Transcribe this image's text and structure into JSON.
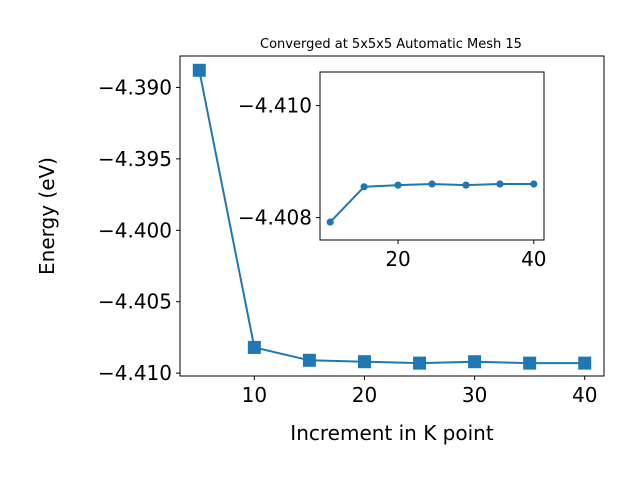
{
  "chart_data": [
    {
      "type": "line",
      "title": "Converged at 5x5x5 Automatic Mesh 15",
      "xlabel": "Increment in K point",
      "ylabel": "Energy (eV)",
      "x": [
        5,
        10,
        15,
        20,
        25,
        30,
        35,
        40
      ],
      "series": [
        {
          "values": [
            -4.3888,
            -4.4082,
            -4.4091,
            -4.4092,
            -4.4093,
            -4.4092,
            -4.4093,
            -4.4093
          ],
          "color": "#1f77b4",
          "marker": "square"
        }
      ],
      "xlim": [
        3.25,
        41.75
      ],
      "ylim": [
        -4.4102,
        -4.3878
      ],
      "xticks": [
        10,
        20,
        30,
        40
      ],
      "xtick_labels": [
        "10",
        "20",
        "30",
        "40"
      ],
      "yticks": [
        -4.39,
        -4.395,
        -4.4,
        -4.405,
        -4.41
      ],
      "ytick_labels": [
        "−4.390",
        "−4.395",
        "−4.400",
        "−4.405",
        "−4.410"
      ],
      "grid": false
    },
    {
      "type": "line",
      "title": "",
      "x": [
        10,
        15,
        20,
        25,
        30,
        35,
        40
      ],
      "series": [
        {
          "values": [
            -4.40792,
            -4.40855,
            -4.40858,
            -4.4086,
            -4.40858,
            -4.4086,
            -4.4086
          ],
          "color": "#1f77b4",
          "marker": "circle"
        }
      ],
      "xlim": [
        8.5,
        41.5
      ],
      "ylim": [
        -4.4076,
        -4.4106
      ],
      "xticks": [
        20,
        40
      ],
      "xtick_labels": [
        "20",
        "40"
      ],
      "yticks": [
        -4.41,
        -4.408
      ],
      "ytick_labels": [
        "−4.410",
        "−4.408"
      ],
      "grid": false
    }
  ]
}
